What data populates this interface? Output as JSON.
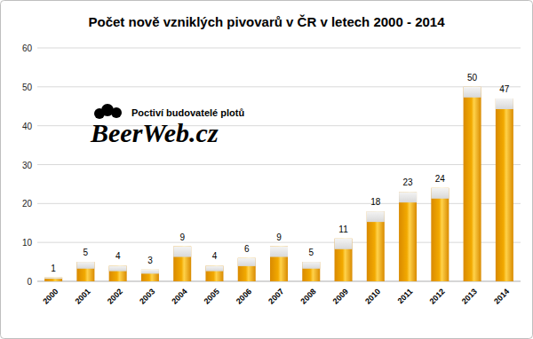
{
  "chart_data": {
    "type": "bar",
    "title": "Počet nově vzniklých pivovarů v ČR v letech 2000 - 2014",
    "annotations": [
      "Poctiví budovatelé plotů",
      "BeerWeb.cz"
    ],
    "categories": [
      "2000",
      "2001",
      "2002",
      "2003",
      "2004",
      "2005",
      "2006",
      "2007",
      "2008",
      "2009",
      "2010",
      "2011",
      "2012",
      "2013",
      "2014"
    ],
    "values": [
      1,
      5,
      4,
      3,
      9,
      4,
      6,
      9,
      5,
      11,
      18,
      23,
      24,
      50,
      47
    ],
    "color": "#f2a900",
    "ylim": [
      0,
      60
    ],
    "yticks": [
      0,
      10,
      20,
      30,
      40,
      50,
      60
    ],
    "grid": true,
    "data_labels": true
  }
}
